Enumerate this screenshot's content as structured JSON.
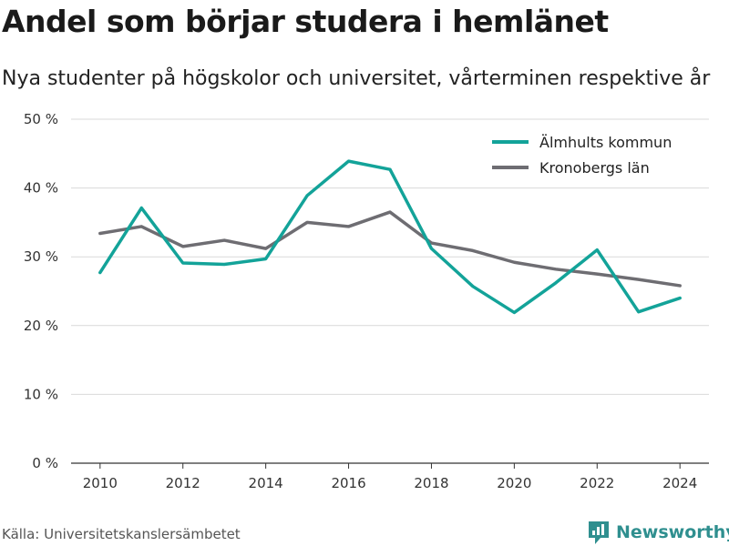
{
  "chart_data": {
    "type": "line",
    "title": "Andel som börjar studera i hemlänet",
    "subtitle": "Nya studenter på högskolor och universitet, vårterminen respektive år",
    "x": [
      2010,
      2011,
      2012,
      2013,
      2014,
      2015,
      2016,
      2017,
      2018,
      2019,
      2020,
      2021,
      2022,
      2023,
      2024
    ],
    "x_ticks": [
      "2010",
      "2012",
      "2014",
      "2016",
      "2018",
      "2020",
      "2022",
      "2024"
    ],
    "y_ticks": [
      "0 %",
      "10 %",
      "20 %",
      "30 %",
      "40 %",
      "50 %"
    ],
    "ylim": [
      0,
      50
    ],
    "grid": true,
    "legend_position": "top-right",
    "series": [
      {
        "name": "Älmhults kommun",
        "color": "#13a399",
        "values": [
          27.7,
          37.1,
          29.1,
          28.9,
          29.7,
          38.9,
          43.9,
          42.7,
          31.2,
          25.7,
          21.9,
          26.2,
          31.0,
          22.0,
          24.0
        ]
      },
      {
        "name": "Kronobergs län",
        "color": "#6e6d72",
        "values": [
          33.4,
          34.4,
          31.5,
          32.4,
          31.2,
          35.0,
          34.4,
          36.5,
          32.0,
          30.9,
          29.2,
          28.2,
          27.5,
          26.7,
          25.8
        ]
      }
    ]
  },
  "footer": {
    "source": "Källa: Universitetskanslersämbetet",
    "brand": "Newsworthy",
    "brand_icon": "newsworthy-logo-icon"
  }
}
